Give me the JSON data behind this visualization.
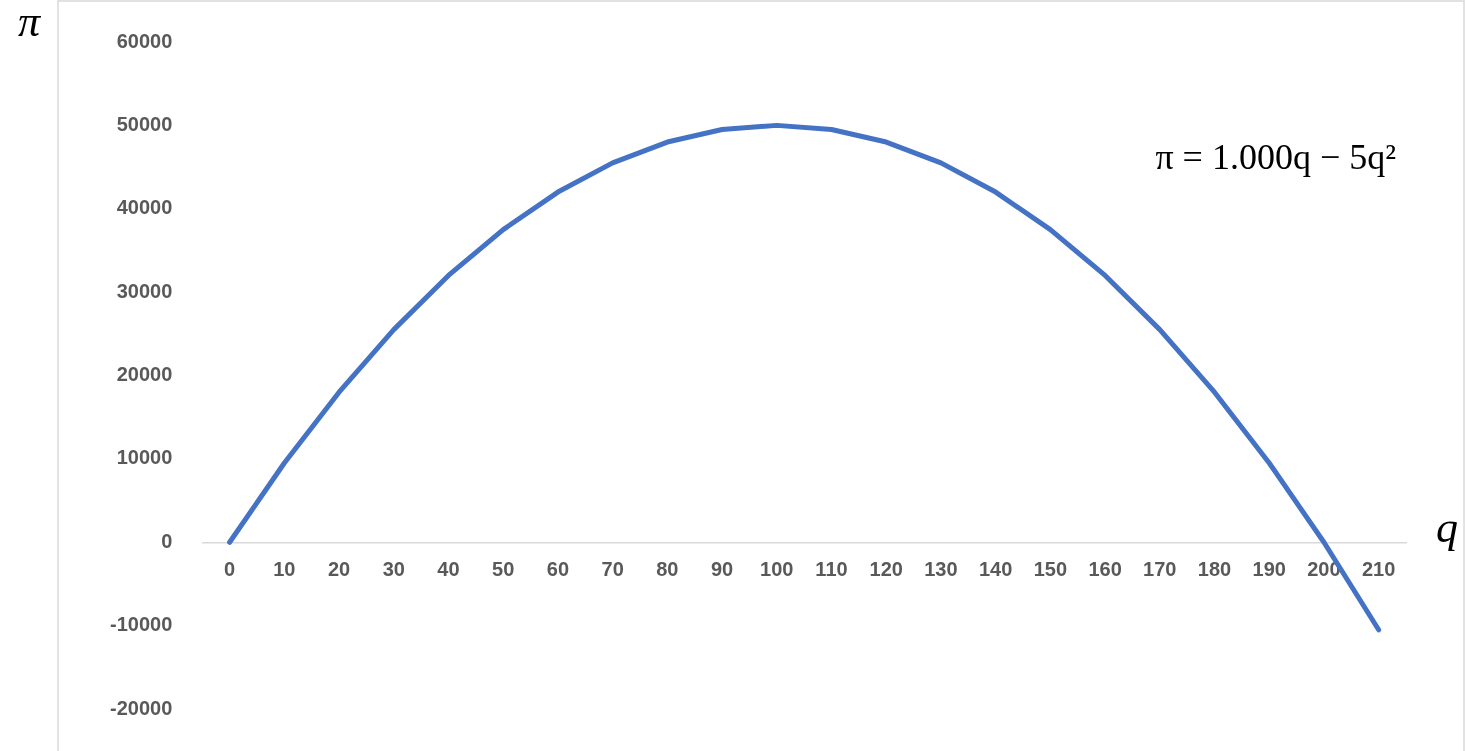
{
  "chart_data": {
    "type": "line",
    "xlabel": "q",
    "ylabel": "π",
    "categories": [
      "0",
      "10",
      "20",
      "30",
      "40",
      "50",
      "60",
      "70",
      "80",
      "90",
      "100",
      "110",
      "120",
      "130",
      "140",
      "150",
      "160",
      "170",
      "180",
      "190",
      "200",
      "210"
    ],
    "series": [
      {
        "color": "#4472c4",
        "values": [
          0,
          9500,
          18000,
          25500,
          32000,
          37500,
          42000,
          45500,
          48000,
          49500,
          50000,
          49500,
          48000,
          45500,
          42000,
          37500,
          32000,
          25500,
          18000,
          9500,
          0,
          -10500
        ]
      }
    ],
    "ylim": [
      -20000,
      60000
    ],
    "yticks": [
      -20000,
      -10000,
      0,
      10000,
      20000,
      30000,
      40000,
      50000,
      60000
    ],
    "annotations": [
      "π = 1.000q − 5q²"
    ],
    "grid": false,
    "legend": false,
    "marker": "none",
    "line_style": "solid"
  }
}
